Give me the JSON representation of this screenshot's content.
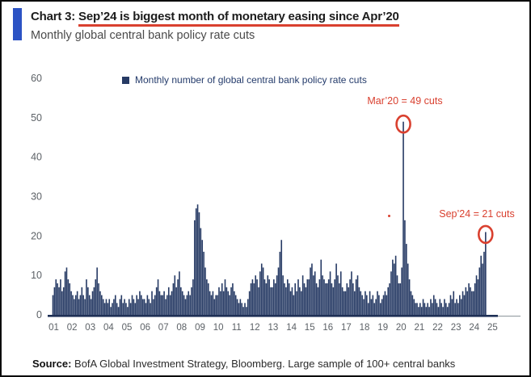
{
  "header": {
    "title_prefix": "Chart 3: ",
    "title_underlined": "Sep’24 is biggest month of monetary easing since Apr’20",
    "subtitle": "Monthly global central bank policy rate cuts"
  },
  "legend": {
    "label": "Monthly number of global central bank policy rate cuts"
  },
  "annotations": [
    {
      "label": "Mar’20 = 49 cuts",
      "month": "2020-03",
      "value": 49
    },
    {
      "label": "Sep’24 = 21 cuts",
      "month": "2024-09",
      "value": 21
    }
  ],
  "source": {
    "prefix": "Source:",
    "text": " BofA Global Investment Strategy, Bloomberg.  Large sample of 100+ central banks"
  },
  "colors": {
    "bar": "#263a64",
    "axis": "#1e2f55",
    "axis_extension": "#9aa0a6",
    "tick_gray": "#5c6166",
    "red": "#d9402f",
    "accent_blue": "#2c53c4",
    "legend_text": "#243b6b"
  },
  "chart_data": {
    "type": "bar",
    "title": "Monthly global central bank policy rate cuts",
    "xlabel": "",
    "ylabel": "",
    "ylim": [
      0,
      60
    ],
    "y_ticks": [
      0,
      10,
      20,
      30,
      40,
      50,
      60
    ],
    "grid": false,
    "legend_position": "top",
    "x_tick_labels": [
      "01",
      "02",
      "03",
      "04",
      "05",
      "06",
      "07",
      "08",
      "09",
      "10",
      "11",
      "12",
      "13",
      "14",
      "15",
      "16",
      "17",
      "18",
      "19",
      "20",
      "21",
      "22",
      "23",
      "24",
      "25"
    ],
    "start_month": "2001-01",
    "end_month": "2024-09",
    "series_name": "Monthly number of global central bank policy rate cuts",
    "years": [
      {
        "year": 2001,
        "monthly": [
          5,
          7,
          9,
          8,
          7,
          9,
          6,
          7,
          11,
          12,
          9,
          8
        ]
      },
      {
        "year": 2002,
        "monthly": [
          6,
          5,
          4,
          5,
          6,
          4,
          5,
          7,
          5,
          4,
          9,
          7
        ]
      },
      {
        "year": 2003,
        "monthly": [
          5,
          4,
          6,
          7,
          9,
          12,
          8,
          6,
          5,
          4,
          3,
          4
        ]
      },
      {
        "year": 2004,
        "monthly": [
          3,
          4,
          2,
          3,
          4,
          5,
          3,
          2,
          4,
          5,
          3,
          4
        ]
      },
      {
        "year": 2005,
        "monthly": [
          3,
          2,
          4,
          3,
          5,
          4,
          3,
          5,
          4,
          6,
          5,
          4
        ]
      },
      {
        "year": 2006,
        "monthly": [
          4,
          3,
          5,
          4,
          3,
          6,
          4,
          5,
          7,
          9,
          6,
          5
        ]
      },
      {
        "year": 2007,
        "monthly": [
          5,
          6,
          4,
          5,
          7,
          5,
          6,
          8,
          10,
          7,
          9,
          11
        ]
      },
      {
        "year": 2008,
        "monthly": [
          7,
          6,
          5,
          4,
          5,
          6,
          5,
          7,
          9,
          24,
          27,
          28
        ]
      },
      {
        "year": 2009,
        "monthly": [
          26,
          22,
          19,
          16,
          12,
          9,
          8,
          6,
          5,
          6,
          4,
          5
        ]
      },
      {
        "year": 2010,
        "monthly": [
          5,
          7,
          6,
          8,
          6,
          9,
          7,
          6,
          5,
          7,
          8,
          6
        ]
      },
      {
        "year": 2011,
        "monthly": [
          5,
          4,
          3,
          4,
          3,
          2,
          3,
          2,
          4,
          6,
          8,
          9
        ]
      },
      {
        "year": 2012,
        "monthly": [
          8,
          10,
          9,
          7,
          11,
          13,
          12,
          9,
          8,
          10,
          9,
          7
        ]
      },
      {
        "year": 2013,
        "monthly": [
          7,
          9,
          8,
          10,
          12,
          16,
          19,
          10,
          8,
          7,
          9,
          8
        ]
      },
      {
        "year": 2014,
        "monthly": [
          6,
          7,
          5,
          8,
          6,
          9,
          7,
          6,
          10,
          8,
          7,
          9
        ]
      },
      {
        "year": 2015,
        "monthly": [
          9,
          12,
          13,
          10,
          11,
          8,
          7,
          9,
          14,
          10,
          9,
          8
        ]
      },
      {
        "year": 2016,
        "monthly": [
          8,
          9,
          11,
          8,
          7,
          9,
          13,
          10,
          8,
          11,
          7,
          6
        ]
      },
      {
        "year": 2017,
        "monthly": [
          6,
          8,
          7,
          9,
          11,
          8,
          6,
          9,
          10,
          7,
          6,
          5
        ]
      },
      {
        "year": 2018,
        "monthly": [
          4,
          6,
          5,
          3,
          6,
          4,
          5,
          3,
          4,
          6,
          5,
          3
        ]
      },
      {
        "year": 2019,
        "monthly": [
          4,
          5,
          6,
          5,
          7,
          8,
          11,
          14,
          13,
          15,
          10,
          8
        ]
      },
      {
        "year": 2020,
        "monthly": [
          8,
          12,
          49,
          24,
          18,
          13,
          9,
          6,
          5,
          4,
          3,
          3
        ]
      },
      {
        "year": 2021,
        "monthly": [
          2,
          3,
          2,
          4,
          3,
          2,
          3,
          2,
          4,
          3,
          5,
          4
        ]
      },
      {
        "year": 2022,
        "monthly": [
          3,
          2,
          4,
          3,
          2,
          4,
          3,
          2,
          3,
          5,
          4,
          6
        ]
      },
      {
        "year": 2023,
        "monthly": [
          3,
          4,
          3,
          5,
          4,
          6,
          5,
          7,
          6,
          8,
          7,
          6
        ]
      },
      {
        "year": 2024,
        "monthly": [
          6,
          8,
          10,
          9,
          12,
          15,
          13,
          16,
          21
        ]
      }
    ]
  }
}
